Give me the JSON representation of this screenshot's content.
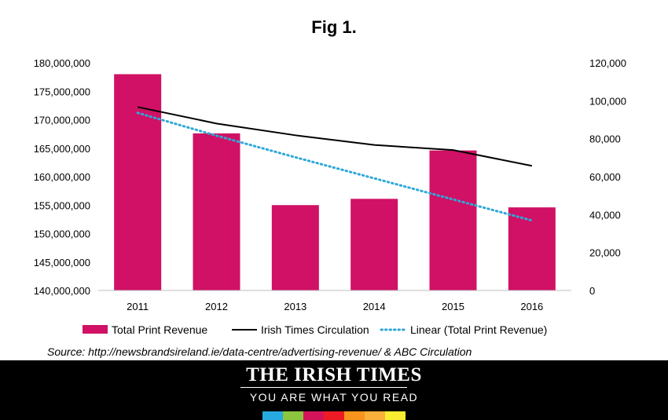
{
  "chart_data": {
    "type": "bar+line",
    "title": "Fig 1.",
    "categories": [
      "2011",
      "2012",
      "2013",
      "2014",
      "2015",
      "2016"
    ],
    "series": [
      {
        "name": "Total Print Revenue",
        "kind": "bar",
        "axis": "left",
        "color": "#D01165",
        "values": [
          178000000,
          167600000,
          155000000,
          156100000,
          164600000,
          154600000
        ]
      },
      {
        "name": "Irish Times Circulation",
        "kind": "line",
        "axis": "right",
        "color": "#000000",
        "values": [
          96700,
          88000,
          81800,
          76700,
          74000,
          65700
        ]
      },
      {
        "name": "Linear (Total Print Revenue)",
        "kind": "trendline",
        "axis": "left",
        "color": "#2FA8D8",
        "values": [
          171200000,
          167200000,
          163400000,
          159700000,
          156000000,
          152300000
        ]
      }
    ],
    "y_left": {
      "min": 140000000,
      "max": 180000000,
      "step": 5000000,
      "ticks": [
        "140,000,000",
        "145,000,000",
        "150,000,000",
        "155,000,000",
        "160,000,000",
        "165,000,000",
        "170,000,000",
        "175,000,000",
        "180,000,000"
      ]
    },
    "y_right": {
      "min": 0,
      "max": 120000,
      "step": 20000,
      "ticks": [
        "0",
        "20,000",
        "40,000",
        "60,000",
        "80,000",
        "100,000",
        "120,000"
      ]
    },
    "grid": false,
    "legend": "bottom"
  },
  "source_text": "Source: http://newsbrandsireland.ie/data-centre/advertising-revenue/ & ABC Circulation",
  "footer": {
    "masthead": "THE IRISH TIMES",
    "tagline": "YOU ARE WHAT YOU READ",
    "strip_colors": [
      "#27AAE1",
      "#8CC63F",
      "#D4145A",
      "#ED1C24",
      "#F7941D",
      "#FBB03B",
      "#F9ED32"
    ]
  }
}
